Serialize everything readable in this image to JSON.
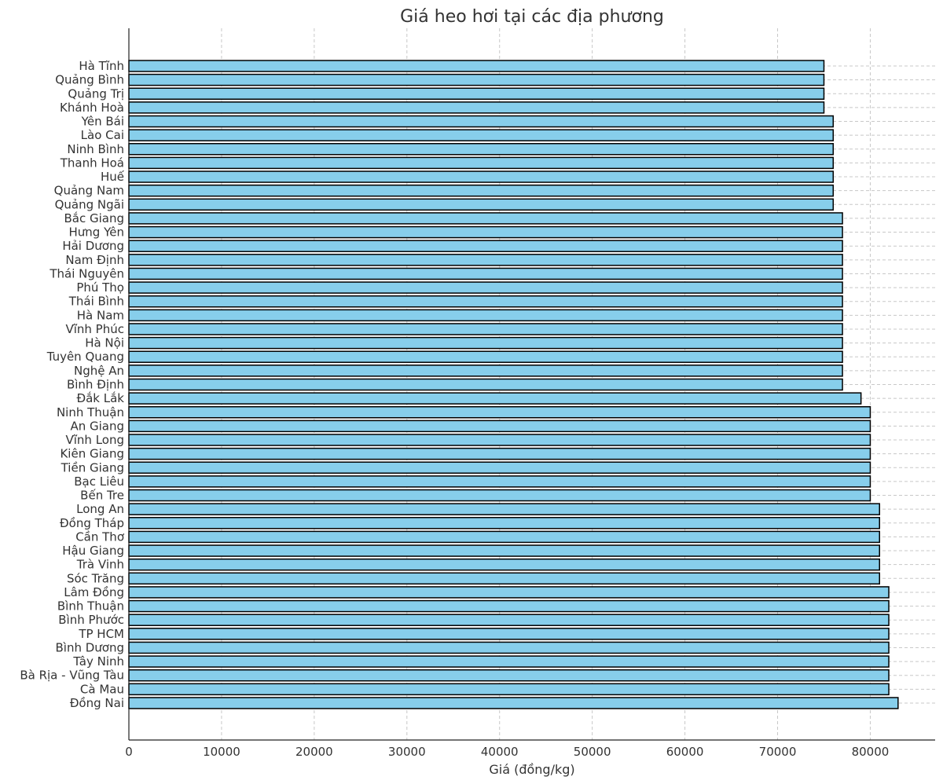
{
  "chart_data": {
    "type": "bar",
    "orientation": "horizontal",
    "title": "Giá heo hơi tại các địa phương",
    "xlabel": "Giá (đồng/kg)",
    "ylabel": "",
    "xlim": [
      0,
      87000
    ],
    "xticks": [
      0,
      10000,
      20000,
      30000,
      40000,
      50000,
      60000,
      70000,
      80000
    ],
    "grid": true,
    "bar_color": "#87ceeb",
    "categories": [
      "Hà Tĩnh",
      "Quảng Bình",
      "Quảng Trị",
      "Khánh Hoà",
      "Yên Bái",
      "Lào Cai",
      "Ninh Bình",
      "Thanh Hoá",
      "Huế",
      "Quảng Nam",
      "Quảng Ngãi",
      "Bắc Giang",
      "Hưng Yên",
      "Hải Dương",
      "Nam Định",
      "Thái Nguyên",
      "Phú Thọ",
      "Thái Bình",
      "Hà Nam",
      "Vĩnh Phúc",
      "Hà Nội",
      "Tuyên Quang",
      "Nghệ An",
      "Bình Định",
      "Đắk Lắk",
      "Ninh Thuận",
      "An Giang",
      "Vĩnh Long",
      "Kiên Giang",
      "Tiền Giang",
      "Bạc Liêu",
      "Bến Tre",
      "Long An",
      "Đồng Tháp",
      "Cần Thơ",
      "Hậu Giang",
      "Trà Vinh",
      "Sóc Trăng",
      "Lâm Đồng",
      "Bình Thuận",
      "Bình Phước",
      "TP HCM",
      "Bình Dương",
      "Tây Ninh",
      "Bà Rịa - Vũng Tàu",
      "Cà Mau",
      "Đồng Nai"
    ],
    "values": [
      75000,
      75000,
      75000,
      75000,
      76000,
      76000,
      76000,
      76000,
      76000,
      76000,
      76000,
      77000,
      77000,
      77000,
      77000,
      77000,
      77000,
      77000,
      77000,
      77000,
      77000,
      77000,
      77000,
      77000,
      79000,
      80000,
      80000,
      80000,
      80000,
      80000,
      80000,
      80000,
      81000,
      81000,
      81000,
      81000,
      81000,
      81000,
      82000,
      82000,
      82000,
      82000,
      82000,
      82000,
      82000,
      82000,
      83000
    ]
  }
}
